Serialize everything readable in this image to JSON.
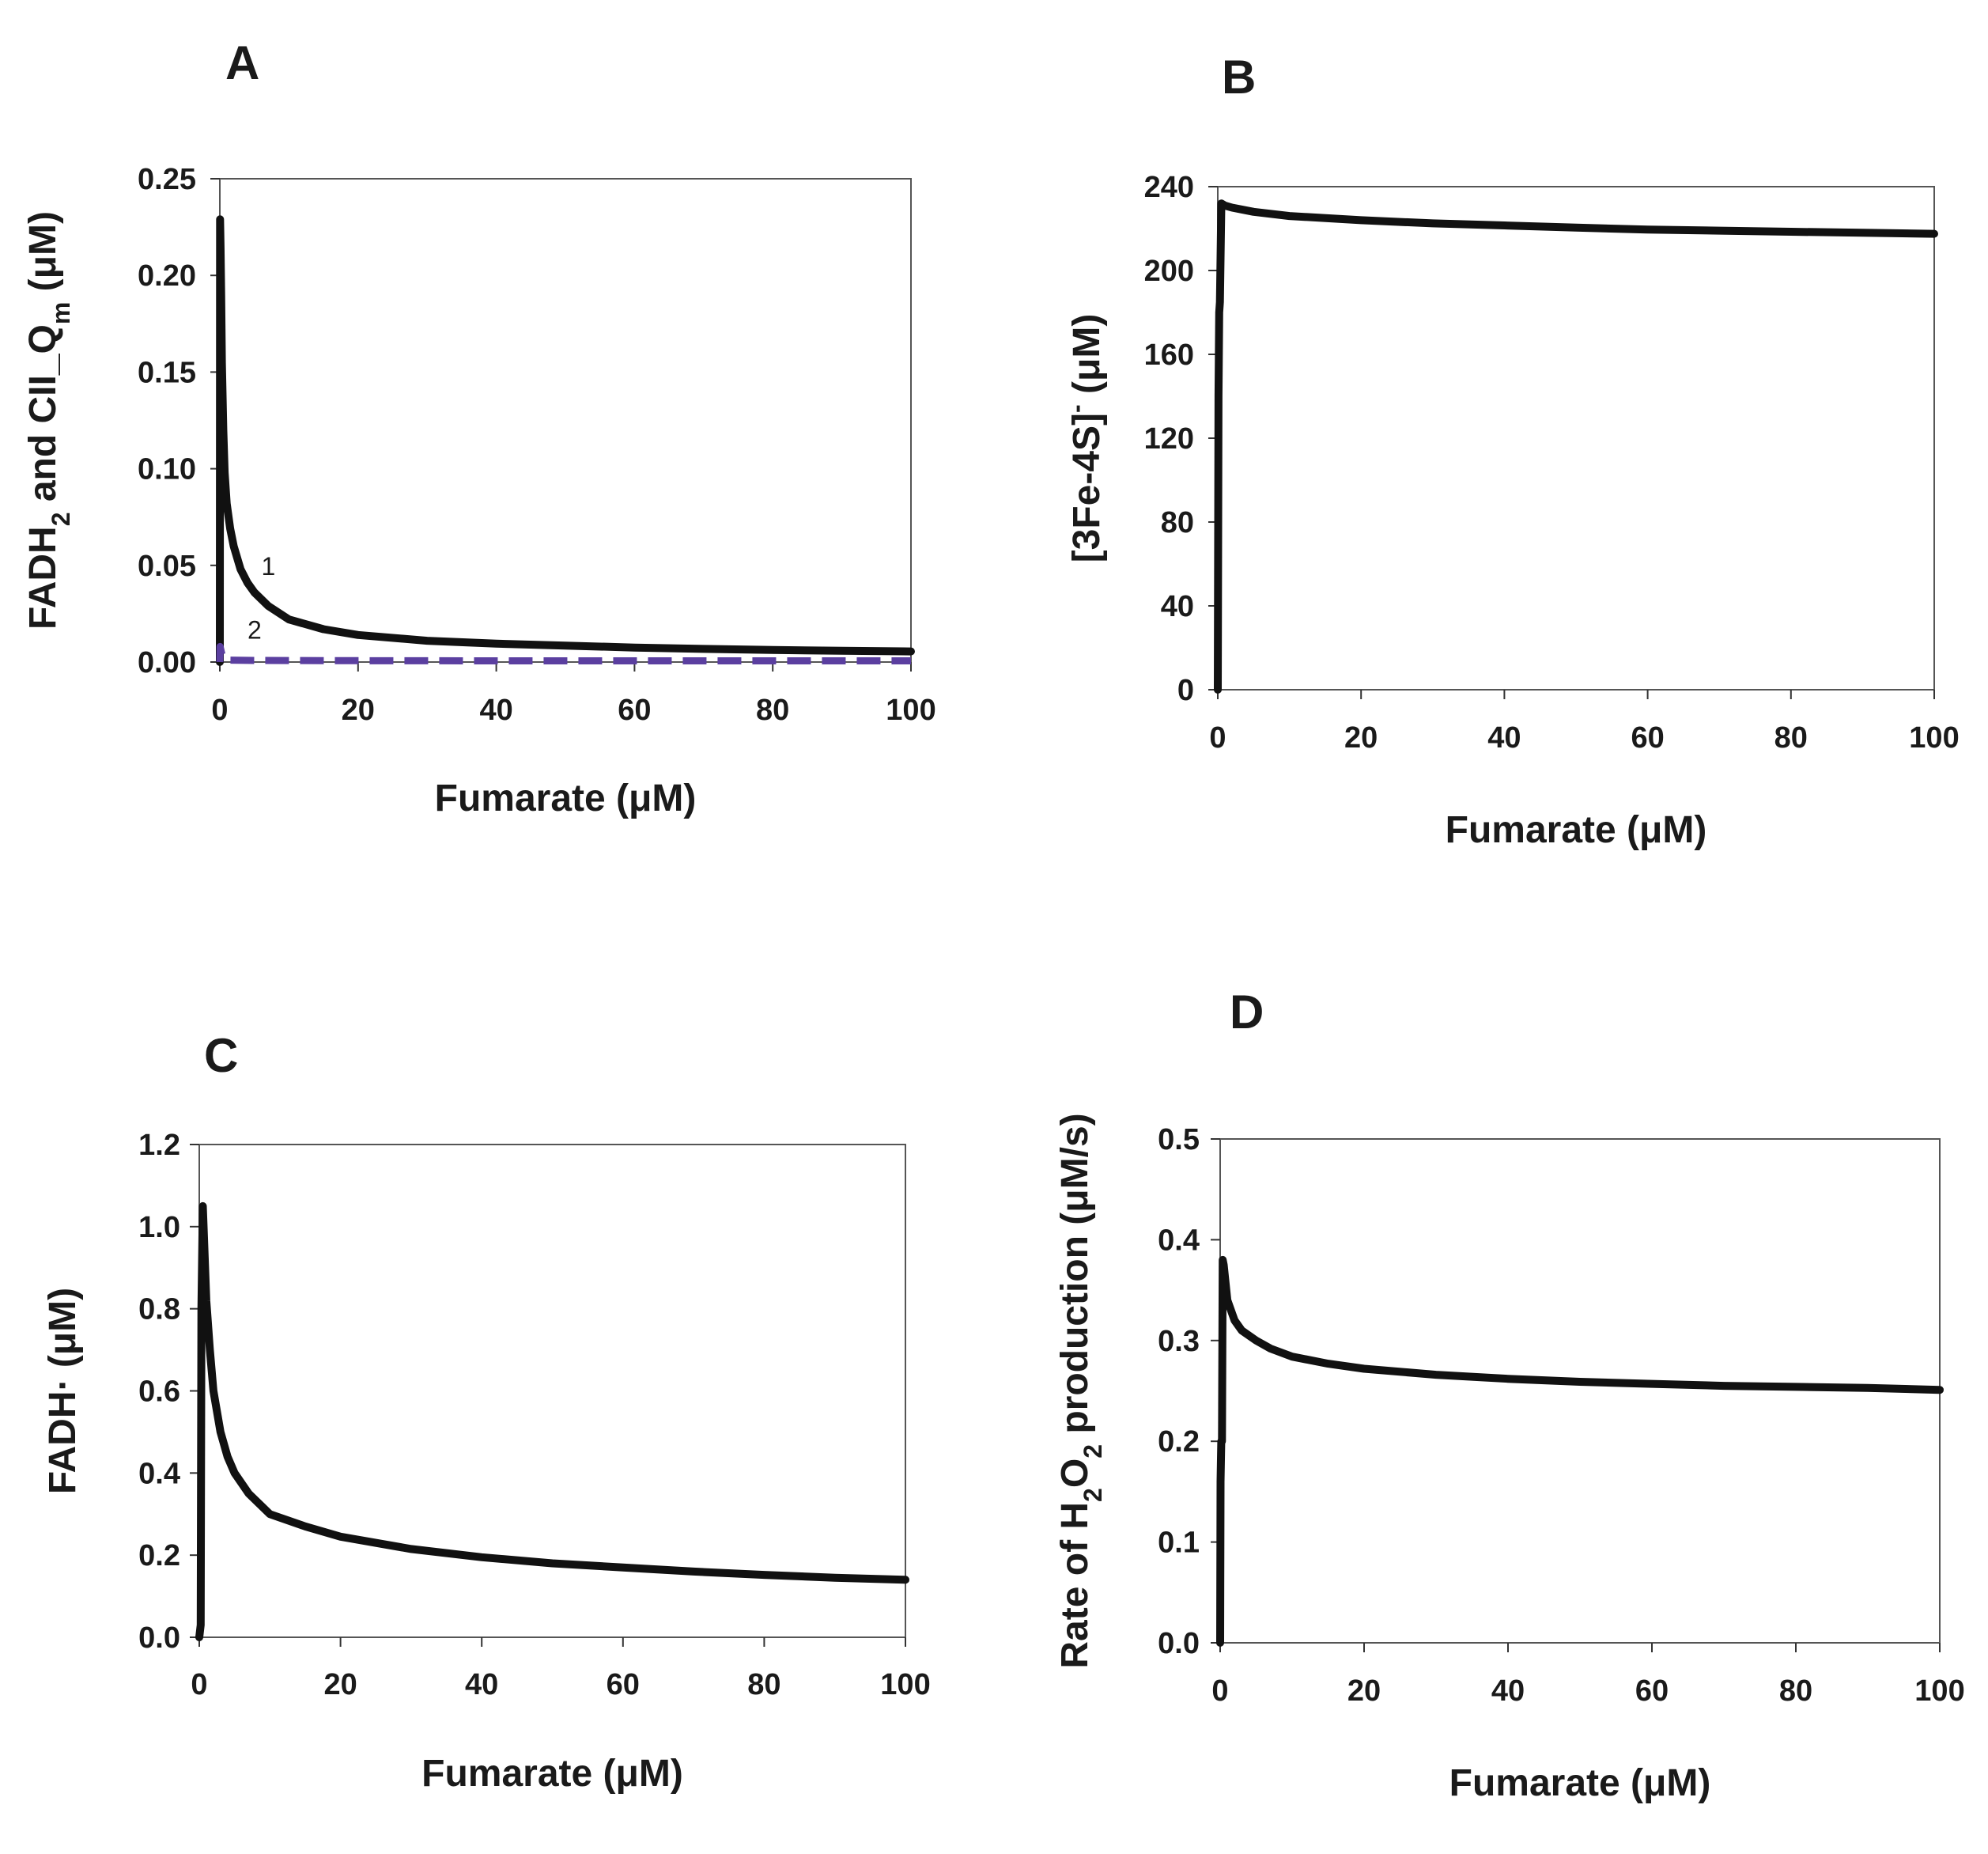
{
  "chart_data": [
    {
      "type": "line",
      "panel": "A",
      "xlabel": "Fumarate (μM)",
      "ylabel": {
        "parts": [
          {
            "t": "FADH",
            "s": ""
          },
          {
            "t": "2",
            "s": "sub"
          },
          {
            "t": " and CII_Q",
            "s": ""
          },
          {
            "t": "m",
            "s": "sub"
          },
          {
            "t": "  (μM)",
            "s": ""
          }
        ]
      },
      "xlim": [
        0,
        100
      ],
      "ylim": [
        0,
        0.25
      ],
      "xticks": [
        0,
        20,
        40,
        60,
        80,
        100
      ],
      "yticks": [
        0,
        0.05,
        0.1,
        0.15,
        0.2,
        0.25
      ],
      "ytick_labels": [
        "0.00",
        "0.05",
        "0.10",
        "0.15",
        "0.20",
        "0.25"
      ],
      "grid": false,
      "series": [
        {
          "label": "1",
          "label_at": [
            6,
            0.045
          ],
          "color": "#111111",
          "dash": false,
          "x": [
            0,
            0.03,
            0.1,
            0.2,
            0.3,
            0.5,
            0.7,
            1,
            1.5,
            2,
            3,
            4,
            5,
            7,
            10,
            15,
            20,
            30,
            40,
            50,
            60,
            70,
            80,
            90,
            100
          ],
          "y": [
            0.0,
            0.229,
            0.215,
            0.19,
            0.155,
            0.12,
            0.098,
            0.082,
            0.069,
            0.06,
            0.048,
            0.041,
            0.036,
            0.029,
            0.022,
            0.017,
            0.014,
            0.011,
            0.0095,
            0.0085,
            0.0075,
            0.0068,
            0.0062,
            0.0058,
            0.0055
          ]
        },
        {
          "label": "2",
          "label_at": [
            4,
            0.012
          ],
          "color": "#5b3fa0",
          "dash": true,
          "x": [
            0,
            0.03,
            0.3,
            1,
            5,
            20,
            40,
            60,
            80,
            100
          ],
          "y": [
            0.0,
            0.008,
            0.004,
            0.001,
            0.0008,
            0.0007,
            0.0006,
            0.0006,
            0.0006,
            0.0006
          ]
        }
      ]
    },
    {
      "type": "line",
      "panel": "B",
      "xlabel": "Fumarate (μM)",
      "ylabel": {
        "parts": [
          {
            "t": "[3Fe-4S]",
            "s": ""
          },
          {
            "t": "-",
            "s": "sup"
          },
          {
            "t": "  (μM)",
            "s": ""
          }
        ]
      },
      "xlim": [
        0,
        100
      ],
      "ylim": [
        0,
        240
      ],
      "xticks": [
        0,
        20,
        40,
        60,
        80,
        100
      ],
      "yticks": [
        0,
        40,
        80,
        120,
        160,
        200,
        240
      ],
      "ytick_labels": [
        "0",
        "40",
        "80",
        "120",
        "160",
        "200",
        "240"
      ],
      "grid": false,
      "series": [
        {
          "label": "",
          "color": "#111111",
          "dash": false,
          "x": [
            0,
            0.1,
            0.2,
            0.3,
            0.5,
            1,
            2,
            5,
            10,
            20,
            30,
            40,
            50,
            60,
            70,
            80,
            90,
            100
          ],
          "y": [
            0,
            140,
            180,
            185,
            232,
            231,
            230,
            228,
            226,
            224,
            222.5,
            221.5,
            220.5,
            219.5,
            219,
            218.5,
            218,
            217.5
          ]
        }
      ]
    },
    {
      "type": "line",
      "panel": "C",
      "xlabel": "Fumarate (μM)",
      "ylabel": {
        "parts": [
          {
            "t": "FADH· (μM)",
            "s": ""
          }
        ]
      },
      "xlim": [
        0,
        100
      ],
      "ylim": [
        0,
        1.2
      ],
      "xticks": [
        0,
        20,
        40,
        60,
        80,
        100
      ],
      "yticks": [
        0,
        0.2,
        0.4,
        0.6,
        0.8,
        1.0,
        1.2
      ],
      "ytick_labels": [
        "0.0",
        "0.2",
        "0.4",
        "0.6",
        "0.8",
        "1.0",
        "1.2"
      ],
      "grid": false,
      "series": [
        {
          "label": "",
          "color": "#111111",
          "dash": false,
          "x": [
            0,
            0.2,
            0.3,
            0.5,
            1,
            1.5,
            2,
            3,
            4,
            5,
            7,
            10,
            15,
            20,
            30,
            40,
            50,
            60,
            70,
            80,
            90,
            100
          ],
          "y": [
            0.0,
            0.03,
            0.8,
            1.05,
            0.82,
            0.7,
            0.6,
            0.5,
            0.44,
            0.4,
            0.35,
            0.3,
            0.27,
            0.245,
            0.215,
            0.195,
            0.18,
            0.17,
            0.16,
            0.152,
            0.145,
            0.14
          ]
        }
      ]
    },
    {
      "type": "line",
      "panel": "D",
      "xlabel": "Fumarate (μM)",
      "ylabel": {
        "parts": [
          {
            "t": "Rate of H",
            "s": ""
          },
          {
            "t": "2",
            "s": "sub"
          },
          {
            "t": "O",
            "s": ""
          },
          {
            "t": "2",
            "s": "sub"
          },
          {
            "t": " production (μM/s)",
            "s": ""
          }
        ]
      },
      "xlim": [
        0,
        100
      ],
      "ylim": [
        0,
        0.5
      ],
      "xticks": [
        0,
        20,
        40,
        60,
        80,
        100
      ],
      "yticks": [
        0,
        0.1,
        0.2,
        0.3,
        0.4,
        0.5
      ],
      "ytick_labels": [
        "0.0",
        "0.1",
        "0.2",
        "0.3",
        "0.4",
        "0.5"
      ],
      "grid": false,
      "series": [
        {
          "label": "",
          "color": "#111111",
          "dash": false,
          "x": [
            0,
            0.05,
            0.15,
            0.25,
            0.35,
            0.5,
            1,
            2,
            3,
            5,
            7,
            10,
            15,
            20,
            30,
            40,
            50,
            60,
            70,
            80,
            90,
            100
          ],
          "y": [
            0.0,
            0.16,
            0.2,
            0.2,
            0.38,
            0.375,
            0.34,
            0.32,
            0.31,
            0.3,
            0.292,
            0.284,
            0.277,
            0.272,
            0.266,
            0.262,
            0.259,
            0.257,
            0.255,
            0.254,
            0.253,
            0.251
          ]
        }
      ]
    }
  ]
}
